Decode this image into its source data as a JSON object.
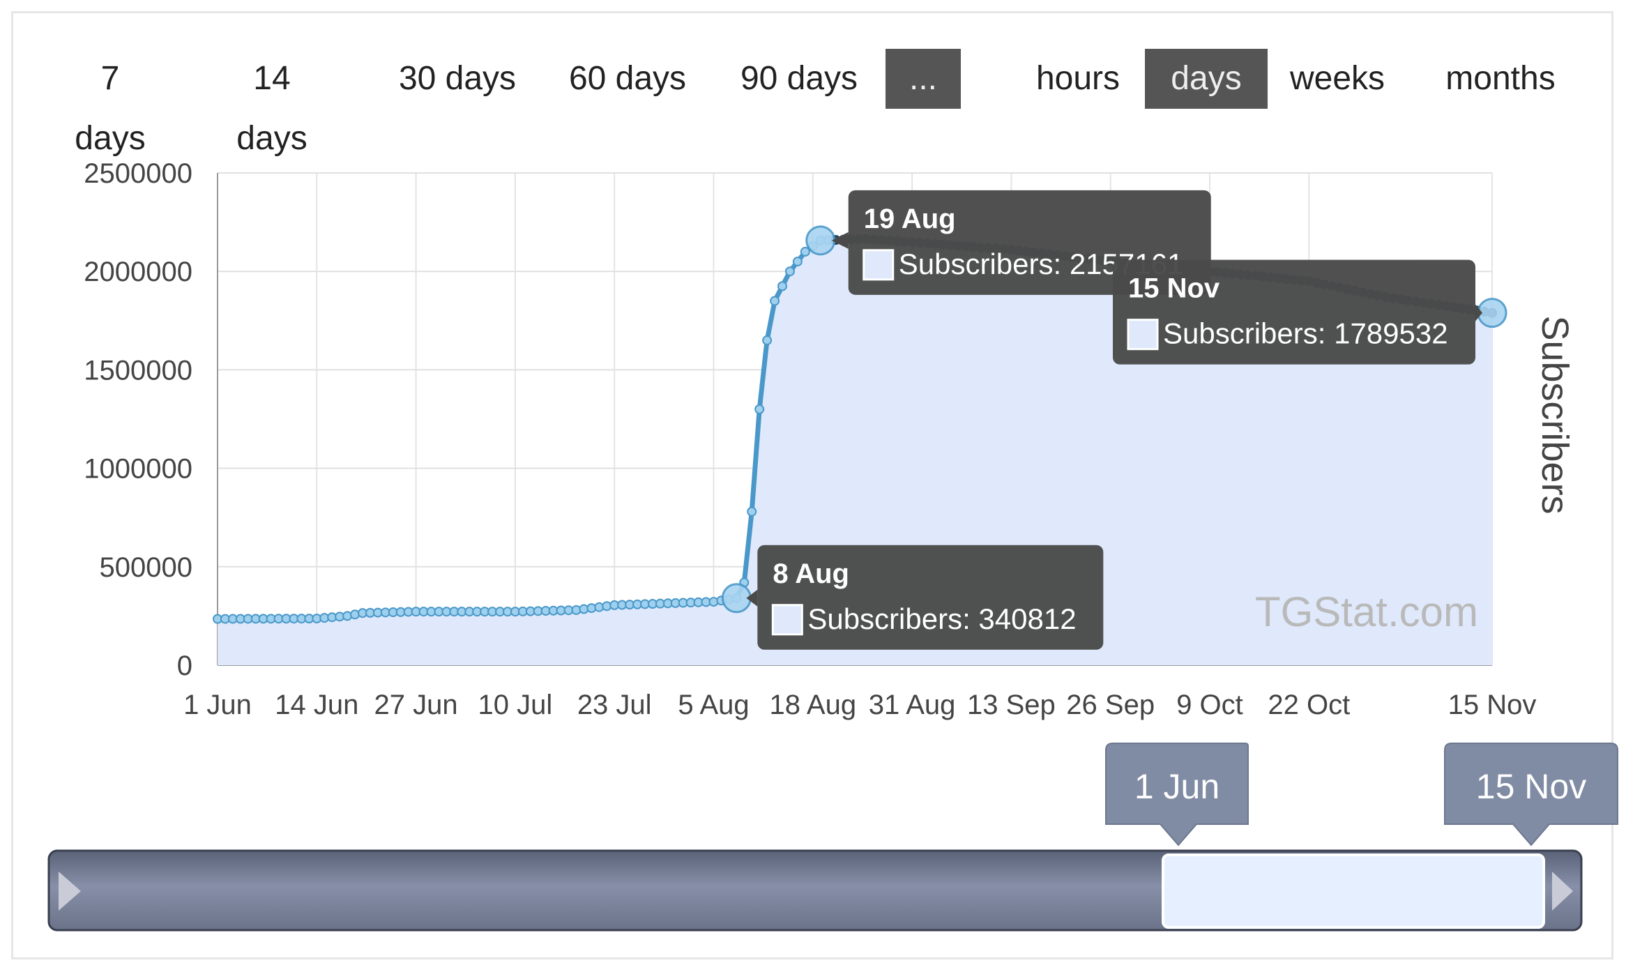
{
  "periods": [
    "7 days",
    "14 days",
    "30 days",
    "60 days",
    "90 days",
    "..."
  ],
  "active_period": "...",
  "units": [
    "hours",
    "days",
    "weeks",
    "months"
  ],
  "active_unit": "days",
  "watermark": "TGStat.com",
  "range_slider": {
    "from_label": "1 Jun",
    "to_label": "15 Nov"
  },
  "chart_data": {
    "type": "area",
    "title": "",
    "xlabel": "",
    "ylabel": "Subscribers",
    "ylim": [
      0,
      2500000
    ],
    "yticks": [
      "0",
      "500000",
      "1000000",
      "1500000",
      "2000000",
      "2500000"
    ],
    "xticks": [
      "1 Jun",
      "14 Jun",
      "27 Jun",
      "10 Jul",
      "23 Jul",
      "5 Aug",
      "18 Aug",
      "31 Aug",
      "13 Sep",
      "26 Sep",
      "9 Oct",
      "22 Oct",
      "15 Nov"
    ],
    "grid": true,
    "series": [
      {
        "name": "Subscribers",
        "color": "#4a98c9",
        "fill": "#dfe9fb",
        "points": [
          [
            "1 Jun",
            235000
          ],
          [
            "14 Jun",
            237000
          ],
          [
            "18 Jun",
            250000
          ],
          [
            "20 Jun",
            265000
          ],
          [
            "27 Jun",
            272000
          ],
          [
            "10 Jul",
            272000
          ],
          [
            "18 Jul",
            280000
          ],
          [
            "23 Jul",
            305000
          ],
          [
            "5 Aug",
            322000
          ],
          [
            "8 Aug",
            340812
          ],
          [
            "9 Aug",
            420000
          ],
          [
            "10 Aug",
            780000
          ],
          [
            "11 Aug",
            1300000
          ],
          [
            "12 Aug",
            1650000
          ],
          [
            "13 Aug",
            1850000
          ],
          [
            "15 Aug",
            2000000
          ],
          [
            "17 Aug",
            2100000
          ],
          [
            "19 Aug",
            2157161
          ],
          [
            "25 Aug",
            2165000
          ],
          [
            "13 Sep",
            2110000
          ],
          [
            "26 Sep",
            2050000
          ],
          [
            "9 Oct",
            2000000
          ],
          [
            "22 Oct",
            1950000
          ],
          [
            "1 Nov",
            1870000
          ],
          [
            "15 Nov",
            1789532
          ]
        ]
      }
    ],
    "tooltips": [
      {
        "title": "19 Aug",
        "text": "Subscribers: 2157161",
        "x": "19 Aug",
        "y": 2157161
      },
      {
        "title": "15 Nov",
        "text": "Subscribers: 1789532",
        "x": "15 Nov",
        "y": 1789532
      },
      {
        "title": "8 Aug",
        "text": "Subscribers: 340812",
        "x": "8 Aug",
        "y": 340812
      }
    ]
  }
}
